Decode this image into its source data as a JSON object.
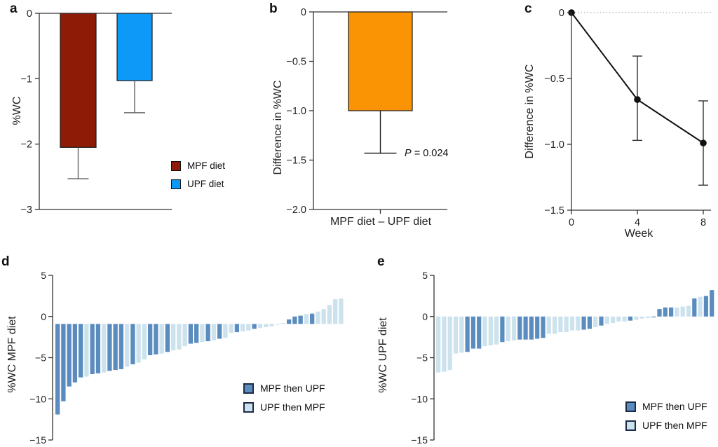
{
  "panels": {
    "a": {
      "letter": "a"
    },
    "b": {
      "letter": "b"
    },
    "c": {
      "letter": "c"
    },
    "d": {
      "letter": "d"
    },
    "e": {
      "letter": "e"
    }
  },
  "colors": {
    "mpf_red": "#8E1B06",
    "upf_blue": "#0D99F7",
    "diff_orange": "#FB9405",
    "mpf_then_upf": "#5B8CBF",
    "upf_then_mpf": "#CCE2EC",
    "axis": "#333333",
    "marker_black": "#111111"
  },
  "chart_data": [
    {
      "type": "bar",
      "panel": "a",
      "ylabel": "%WC",
      "ylim": [
        -3,
        0
      ],
      "yticks": [
        {
          "v": 0,
          "label": "0"
        },
        {
          "v": -1,
          "label": "−1"
        },
        {
          "v": -2,
          "label": "−2"
        },
        {
          "v": -3,
          "label": "−3"
        }
      ],
      "categories": [
        "MPF diet",
        "UPF diet"
      ],
      "values": [
        -2.05,
        -1.03
      ],
      "error_low": [
        -2.53,
        -1.52
      ],
      "bar_colors": [
        "#8E1B06",
        "#0D99F7"
      ],
      "legend_position": "lower right",
      "legend": [
        {
          "label": "MPF diet",
          "color": "#8E1B06"
        },
        {
          "label": "UPF diet",
          "color": "#0D99F7"
        }
      ]
    },
    {
      "type": "bar",
      "panel": "b",
      "ylabel": "Difference in %WC",
      "xlabel": "MPF diet – UPF diet",
      "ylim": [
        -2,
        0
      ],
      "yticks": [
        {
          "v": 0,
          "label": "0"
        },
        {
          "v": -0.5,
          "label": "−0.5"
        },
        {
          "v": -1,
          "label": "−1.0"
        },
        {
          "v": -1.5,
          "label": "−1.5"
        },
        {
          "v": -2,
          "label": "−2.0"
        }
      ],
      "categories": [
        "MPF diet – UPF diet"
      ],
      "values": [
        -1.0
      ],
      "error_low": [
        -1.43
      ],
      "bar_colors": [
        "#FB9405"
      ],
      "annotation": {
        "italic": "P",
        "text": " = 0.024"
      }
    },
    {
      "type": "line",
      "panel": "c",
      "ylabel": "Difference in %WC",
      "xlabel": "Week",
      "ylim": [
        -1.5,
        0
      ],
      "xlim": [
        0,
        8
      ],
      "yticks": [
        {
          "v": 0,
          "label": "0"
        },
        {
          "v": -0.5,
          "label": "−0.5"
        },
        {
          "v": -1,
          "label": "−1.0"
        },
        {
          "v": -1.5,
          "label": "−1.5"
        }
      ],
      "xticks": [
        {
          "v": 0,
          "label": "0"
        },
        {
          "v": 4,
          "label": "4"
        },
        {
          "v": 8,
          "label": "8"
        }
      ],
      "x": [
        0,
        4,
        8
      ],
      "y": [
        0,
        -0.66,
        -0.99
      ],
      "ci_high": [
        null,
        -0.33,
        -0.67
      ],
      "ci_low": [
        null,
        -0.97,
        -1.31
      ],
      "refline_y": 0,
      "line_color": "#111111"
    },
    {
      "type": "bar",
      "subtype": "waterfall",
      "panel": "d",
      "ylabel": "%WC MPF diet",
      "ylim": [
        -15,
        5
      ],
      "yticks": [
        {
          "v": 5,
          "label": "5"
        },
        {
          "v": 0,
          "label": "0"
        },
        {
          "v": -5,
          "label": "−5"
        },
        {
          "v": -10,
          "label": "−10"
        },
        {
          "v": -15,
          "label": "−15"
        }
      ],
      "bar_base": -0.9,
      "group_codes": {
        "M": "MPF then UPF",
        "U": "UPF then MPF"
      },
      "values": [
        -11.9,
        -10.3,
        -8.5,
        -8.0,
        -7.4,
        -7.3,
        -7.0,
        -6.9,
        -6.8,
        -6.6,
        -6.5,
        -6.4,
        -6.1,
        -5.8,
        -5.6,
        -5.2,
        -4.7,
        -4.6,
        -4.5,
        -4.3,
        -4.1,
        -4.0,
        -3.6,
        -3.3,
        -3.2,
        -3.1,
        -3.0,
        -2.9,
        -2.7,
        -2.6,
        -2.0,
        -1.9,
        -1.8,
        -1.7,
        -1.5,
        -1.4,
        -1.3,
        -1.2,
        -1.0,
        -0.8,
        -0.35,
        0.0,
        0.1,
        0.3,
        0.35,
        0.6,
        0.9,
        1.4,
        2.1,
        2.2
      ],
      "groups": [
        "M",
        "M",
        "M",
        "M",
        "M",
        "U",
        "M",
        "M",
        "U",
        "M",
        "M",
        "M",
        "U",
        "M",
        "U",
        "U",
        "M",
        "M",
        "U",
        "M",
        "U",
        "U",
        "U",
        "M",
        "M",
        "U",
        "M",
        "U",
        "M",
        "U",
        "U",
        "M",
        "U",
        "U",
        "M",
        "U",
        "U",
        "U",
        "U",
        "U",
        "M",
        "M",
        "M",
        "U",
        "M",
        "U",
        "U",
        "U",
        "U",
        "U"
      ],
      "legend": [
        {
          "label": "MPF then UPF",
          "color": "#5B8CBF"
        },
        {
          "label": "UPF then MPF",
          "color": "#CCE2EC"
        }
      ]
    },
    {
      "type": "bar",
      "subtype": "waterfall",
      "panel": "e",
      "ylabel": "%WC UPF diet",
      "ylim": [
        -15,
        5
      ],
      "yticks": [
        {
          "v": 5,
          "label": "5"
        },
        {
          "v": 0,
          "label": "0"
        },
        {
          "v": -5,
          "label": "−5"
        },
        {
          "v": -10,
          "label": "−10"
        },
        {
          "v": -15,
          "label": "−15"
        }
      ],
      "bar_base": 0,
      "group_codes": {
        "M": "MPF then UPF",
        "U": "UPF then MPF"
      },
      "values": [
        -6.8,
        -6.7,
        -6.5,
        -4.5,
        -4.4,
        -4.3,
        -3.9,
        -3.9,
        -3.6,
        -3.5,
        -3.4,
        -3.1,
        -3.0,
        -2.9,
        -2.8,
        -2.8,
        -2.8,
        -2.7,
        -2.6,
        -2.1,
        -2.1,
        -1.9,
        -1.9,
        -1.7,
        -1.7,
        -1.6,
        -1.5,
        -1.3,
        -1.1,
        -0.9,
        -0.8,
        -0.6,
        -0.6,
        -0.5,
        -0.4,
        -0.25,
        -0.2,
        -0.1,
        0.9,
        1.1,
        1.1,
        1.1,
        1.2,
        1.3,
        2.2,
        2.4,
        2.5,
        3.2
      ],
      "groups": [
        "U",
        "U",
        "U",
        "U",
        "U",
        "M",
        "M",
        "M",
        "U",
        "U",
        "U",
        "M",
        "U",
        "U",
        "M",
        "M",
        "M",
        "M",
        "M",
        "U",
        "U",
        "U",
        "U",
        "U",
        "U",
        "M",
        "M",
        "U",
        "M",
        "U",
        "U",
        "U",
        "U",
        "M",
        "U",
        "U",
        "U",
        "M",
        "M",
        "M",
        "M",
        "U",
        "U",
        "U",
        "M",
        "U",
        "M",
        "M"
      ],
      "legend": [
        {
          "label": "MPF then UPF",
          "color": "#5B8CBF"
        },
        {
          "label": "UPF then MPF",
          "color": "#CCE2EC"
        }
      ]
    }
  ]
}
